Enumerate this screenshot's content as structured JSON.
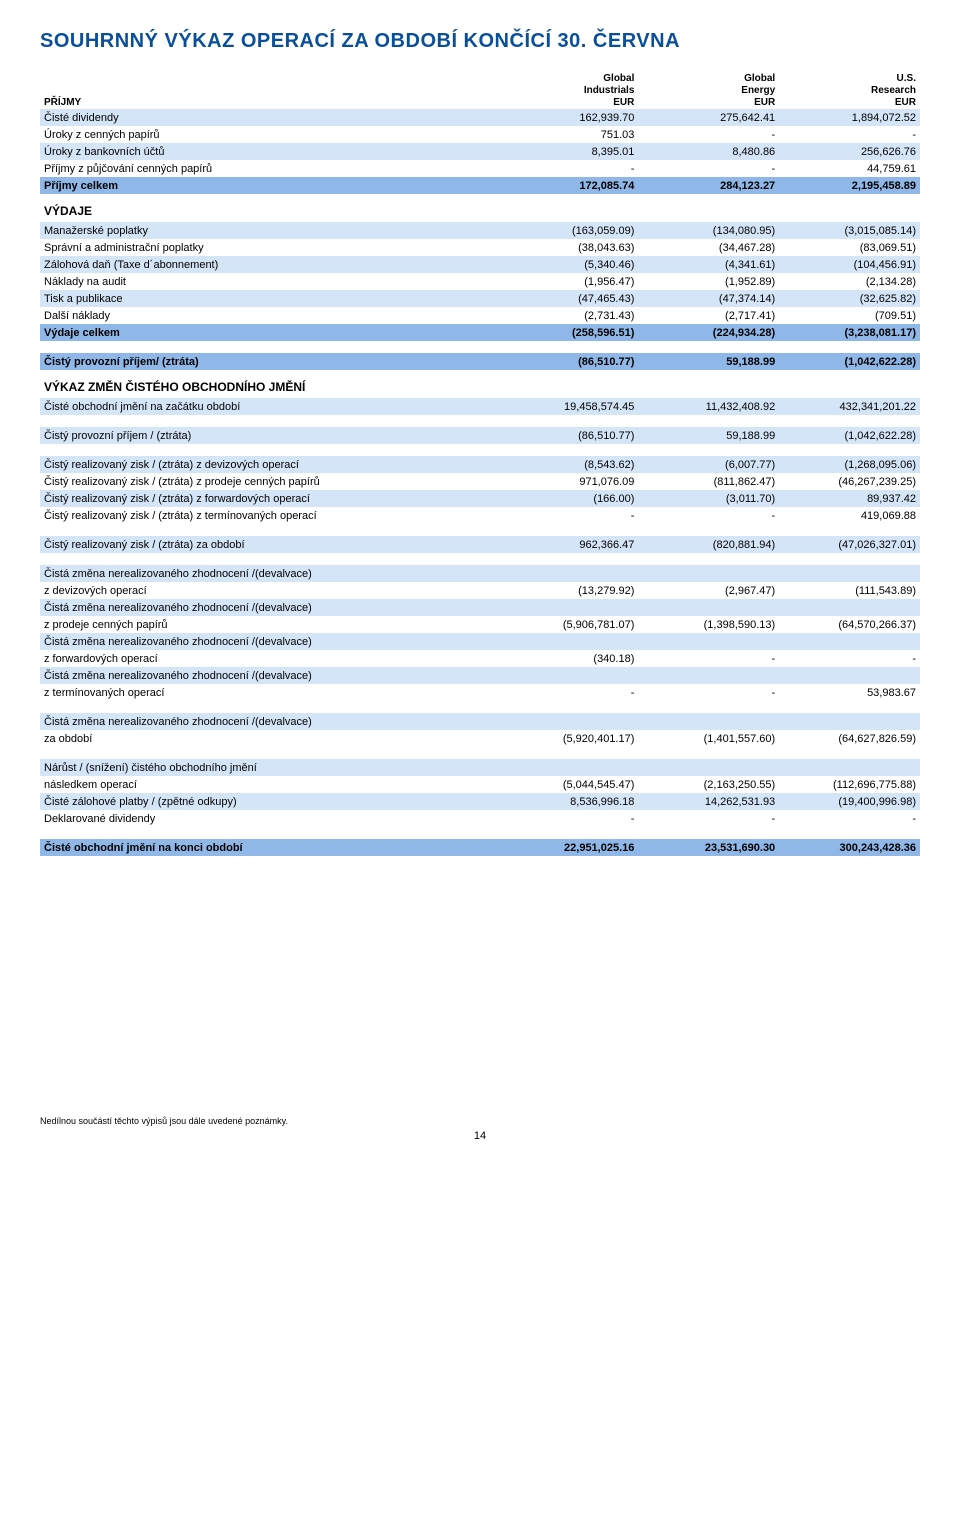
{
  "title": "SOUHRNNÝ VÝKAZ OPERACÍ ZA OBDOBÍ KONČÍCÍ 30. ČERVNA",
  "columns": {
    "c1": {
      "l1": "Global",
      "l2": "Industrials",
      "l3": "EUR"
    },
    "c2": {
      "l1": "Global",
      "l2": "Energy",
      "l3": "EUR"
    },
    "c3": {
      "l1": "U.S.",
      "l2": "Research",
      "l3": "EUR"
    }
  },
  "sections": {
    "prijmy": "PŘÍJMY",
    "vydaje": "VÝDAJE",
    "vykaz_zmen": "VÝKAZ ZMĚN ČISTÉHO OBCHODNÍHO JMĚNÍ"
  },
  "rows": {
    "r1": {
      "label": "Čisté dividendy",
      "v": [
        "162,939.70",
        "275,642.41",
        "1,894,072.52"
      ]
    },
    "r2": {
      "label": "Úroky z cenných papírů",
      "v": [
        "751.03",
        "-",
        "-"
      ]
    },
    "r3": {
      "label": "Úroky z bankovních účtů",
      "v": [
        "8,395.01",
        "8,480.86",
        "256,626.76"
      ]
    },
    "r4": {
      "label": "Příjmy z půjčování cenných papírů",
      "v": [
        "-",
        "-",
        "44,759.61"
      ]
    },
    "r5": {
      "label": "Příjmy celkem",
      "v": [
        "172,085.74",
        "284,123.27",
        "2,195,458.89"
      ]
    },
    "r6": {
      "label": "Manažerské poplatky",
      "v": [
        "(163,059.09)",
        "(134,080.95)",
        "(3,015,085.14)"
      ]
    },
    "r7": {
      "label": "Správní a administrační poplatky",
      "v": [
        "(38,043.63)",
        "(34,467.28)",
        "(83,069.51)"
      ]
    },
    "r8": {
      "label": "Zálohová daň (Taxe d´abonnement)",
      "v": [
        "(5,340.46)",
        "(4,341.61)",
        "(104,456.91)"
      ]
    },
    "r9": {
      "label": "Náklady na audit",
      "v": [
        "(1,956.47)",
        "(1,952.89)",
        "(2,134.28)"
      ]
    },
    "r10": {
      "label": "Tisk a publikace",
      "v": [
        "(47,465.43)",
        "(47,374.14)",
        "(32,625.82)"
      ]
    },
    "r11": {
      "label": "Další náklady",
      "v": [
        "(2,731.43)",
        "(2,717.41)",
        "(709.51)"
      ]
    },
    "r12": {
      "label": "Výdaje celkem",
      "v": [
        "(258,596.51)",
        "(224,934.28)",
        "(3,238,081.17)"
      ]
    },
    "r13": {
      "label": "Čistý provozní příjem/ (ztráta)",
      "v": [
        "(86,510.77)",
        "59,188.99",
        "(1,042,622.28)"
      ]
    },
    "r14": {
      "label": "Čisté obchodní jmění na začátku období",
      "v": [
        "19,458,574.45",
        "11,432,408.92",
        "432,341,201.22"
      ]
    },
    "r15": {
      "label": "Čistý provozní příjem / (ztráta)",
      "v": [
        "(86,510.77)",
        "59,188.99",
        "(1,042,622.28)"
      ]
    },
    "r16": {
      "label": "Čistý realizovaný zisk / (ztráta) z devizových operací",
      "v": [
        "(8,543.62)",
        "(6,007.77)",
        "(1,268,095.06)"
      ]
    },
    "r17": {
      "label": "Čistý realizovaný zisk / (ztráta) z prodeje cenných papírů",
      "v": [
        "971,076.09",
        "(811,862.47)",
        "(46,267,239.25)"
      ]
    },
    "r18": {
      "label": "Čistý realizovaný zisk / (ztráta) z forwardových operací",
      "v": [
        "(166.00)",
        "(3,011.70)",
        "89,937.42"
      ]
    },
    "r19": {
      "label": "Čistý realizovaný zisk / (ztráta) z termínovaných operací",
      "v": [
        "-",
        "-",
        "419,069.88"
      ]
    },
    "r20": {
      "label": "Čistý realizovaný zisk / (ztráta) za období",
      "v": [
        "962,366.47",
        "(820,881.94)",
        "(47,026,327.01)"
      ]
    },
    "r21a": {
      "label": "Čistá změna nerealizovaného zhodnocení /(devalvace)"
    },
    "r21": {
      "label": "z devizových operací",
      "v": [
        "(13,279.92)",
        "(2,967.47)",
        "(111,543.89)"
      ]
    },
    "r22a": {
      "label": "Čistá změna nerealizovaného zhodnocení /(devalvace)"
    },
    "r22": {
      "label": "z prodeje cenných papírů",
      "v": [
        "(5,906,781.07)",
        "(1,398,590.13)",
        "(64,570,266.37)"
      ]
    },
    "r23a": {
      "label": "Čistá změna nerealizovaného zhodnocení /(devalvace)"
    },
    "r23": {
      "label": "z forwardových operací",
      "v": [
        "(340.18)",
        "-",
        "-"
      ]
    },
    "r24a": {
      "label": "Čistá změna nerealizovaného zhodnocení /(devalvace)"
    },
    "r24": {
      "label": "z termínovaných operací",
      "v": [
        "-",
        "-",
        "53,983.67"
      ]
    },
    "r25a": {
      "label": "Čistá změna nerealizovaného zhodnocení /(devalvace)"
    },
    "r25": {
      "label": "za období",
      "v": [
        "(5,920,401.17)",
        "(1,401,557.60)",
        "(64,627,826.59)"
      ]
    },
    "r26a": {
      "label": "Nárůst / (snížení) čistého obchodního jmění"
    },
    "r26": {
      "label": "následkem operací",
      "v": [
        "(5,044,545.47)",
        "(2,163,250.55)",
        "(112,696,775.88)"
      ]
    },
    "r27": {
      "label": "Čisté zálohové platby / (zpětné odkupy)",
      "v": [
        "8,536,996.18",
        "14,262,531.93",
        "(19,400,996.98)"
      ]
    },
    "r28": {
      "label": "Deklarované dividendy",
      "v": [
        "-",
        "-",
        "-"
      ]
    },
    "r29": {
      "label": "Čisté obchodní jmění na konci období",
      "v": [
        "22,951,025.16",
        "23,531,690.30",
        "300,243,428.36"
      ]
    }
  },
  "footer": "Nedílnou součástí těchto výpisů jsou dále uvedené poznámky.",
  "page": "14",
  "style": {
    "title_color": "#0a4f9a",
    "light_row_bg": "#d4e5f7",
    "dark_row_bg": "#8fb8e8",
    "body_font_size": 11,
    "title_font_size": 20
  }
}
